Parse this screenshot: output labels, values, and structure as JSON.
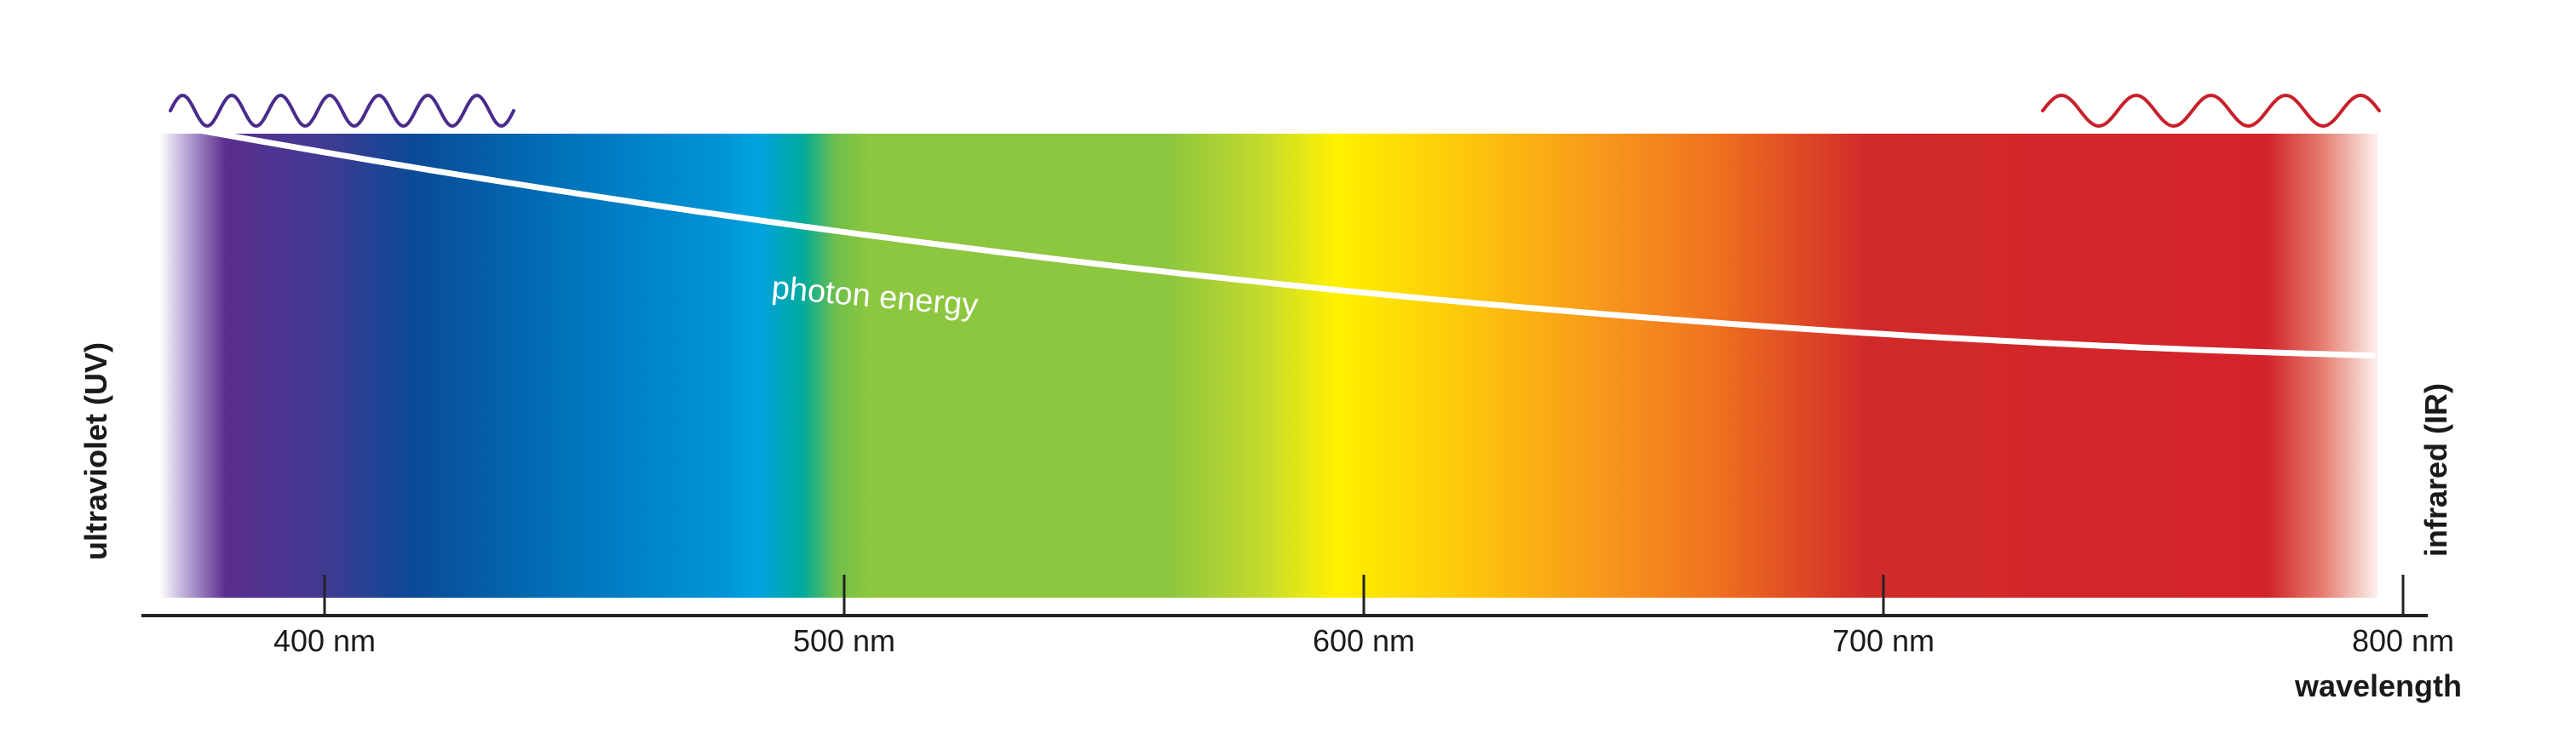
{
  "left_label": "ultraviolet (UV)",
  "right_label": "infrared (IR)",
  "curve_label": "photon energy",
  "axis_title": "wavelength",
  "ticks": [
    {
      "value": 400,
      "label": "400 nm"
    },
    {
      "value": 500,
      "label": "500 nm"
    },
    {
      "value": 600,
      "label": "600 nm"
    },
    {
      "value": 700,
      "label": "700 nm"
    },
    {
      "value": 800,
      "label": "800 nm"
    }
  ],
  "colors": {
    "uv_wave": "#4a2b8c",
    "ir_wave": "#c8202a",
    "curve": "#ffffff",
    "axis": "#222222",
    "text": "#1a1a1a"
  }
}
